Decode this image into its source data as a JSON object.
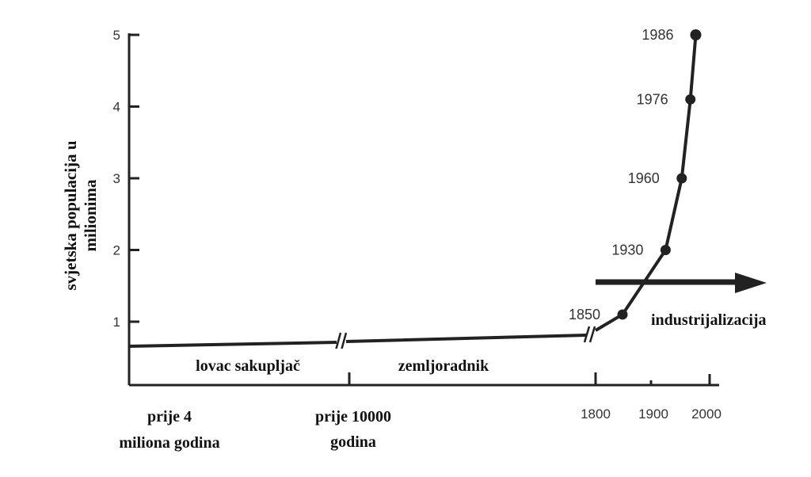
{
  "chart_data": {
    "type": "line",
    "ylabel_lines": [
      "svjetska populacija u",
      "milionima"
    ],
    "yticks": [
      "1",
      "2",
      "3",
      "4",
      "5"
    ],
    "ylim": [
      0,
      5
    ],
    "x_labels": [
      [
        "prije 4",
        "miliona godina"
      ],
      [
        "prije 10000",
        "godina"
      ],
      [
        "1800"
      ],
      [
        "1900"
      ],
      [
        "2000"
      ]
    ],
    "eras": [
      "lovac sakupljač",
      "zemljoradnik"
    ],
    "annotation": "industrijalizacija",
    "series": [
      {
        "points": [
          {
            "year": 1850,
            "value": 1.1,
            "label": "1850"
          },
          {
            "year": 1930,
            "value": 2.0,
            "label": "1930"
          },
          {
            "year": 1960,
            "value": 3.0,
            "label": "1960"
          },
          {
            "year": 1976,
            "value": 4.1,
            "label": "1976"
          },
          {
            "year": 1986,
            "value": 5.0,
            "label": "1986"
          }
        ]
      }
    ],
    "grid": false,
    "axis_breaks": true
  }
}
